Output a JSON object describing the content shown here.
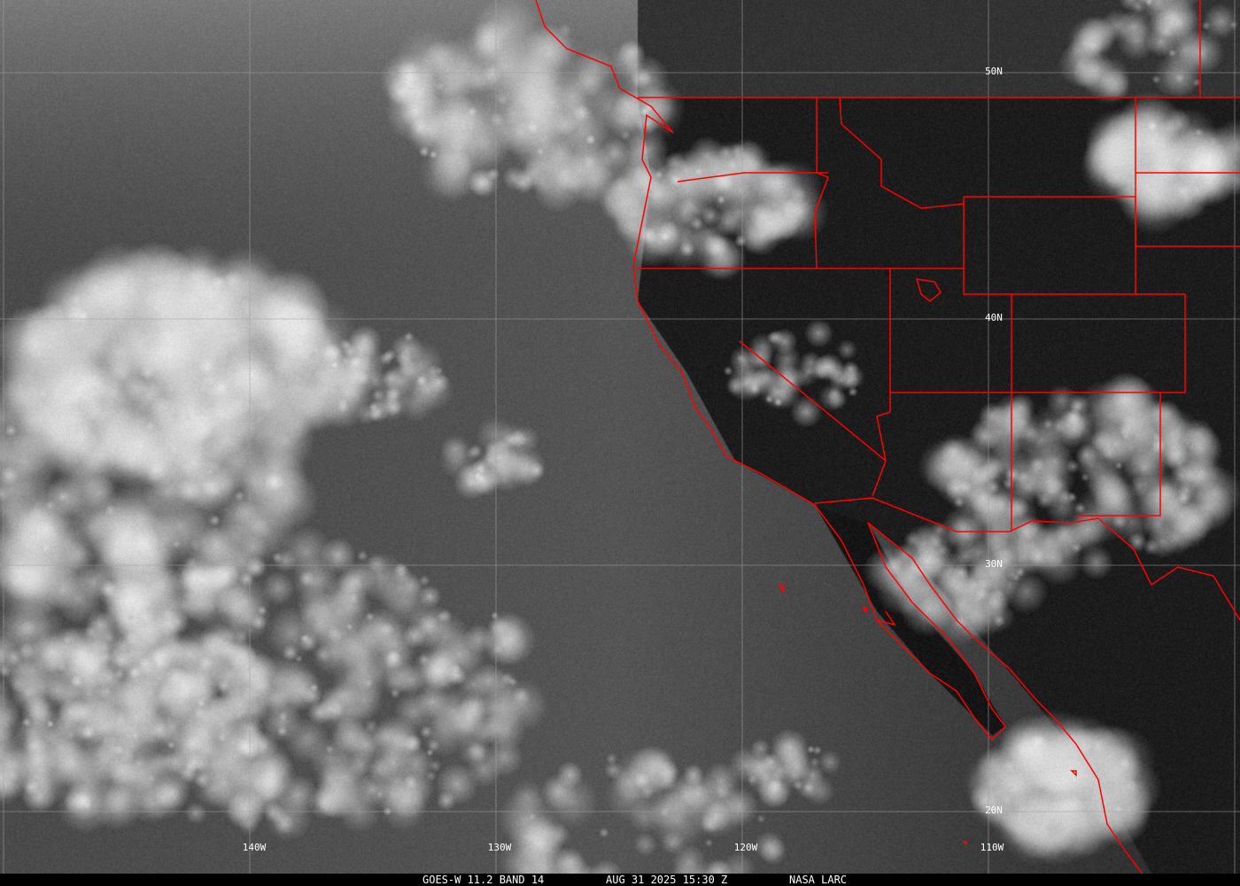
{
  "map": {
    "longitude_labels": [
      "140W",
      "130W",
      "120W",
      "110W"
    ],
    "latitude_labels": [
      "50N",
      "40N",
      "30N",
      "20N"
    ],
    "border_color": "#ff0000",
    "grid_color": "#a0a0a0"
  },
  "caption": {
    "product": "GOES-W 11.2 BAND 14",
    "datetime": "AUG 31 2025 15:30 Z",
    "source": "NASA LARC"
  }
}
